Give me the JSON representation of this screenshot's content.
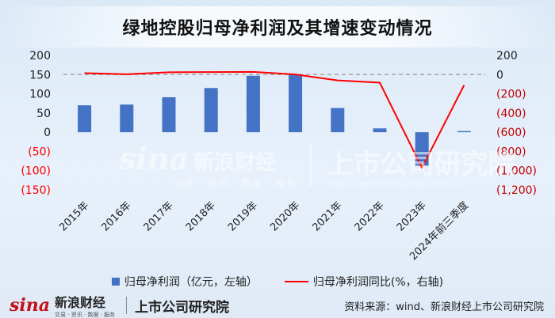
{
  "title": "绿地控股归母净利润及其增速变动情况",
  "chart_data": {
    "type": "bar",
    "categories": [
      "2015年",
      "2016年",
      "2017年",
      "2018年",
      "2019年",
      "2020年",
      "2021年",
      "2022年",
      "2023年",
      "2024年前三季度"
    ],
    "series": [
      {
        "name": "归母净利润（亿元，左轴）",
        "type": "bar",
        "axis": "left",
        "values": [
          70,
          72,
          91,
          115,
          147,
          150,
          63,
          10,
          -87,
          3
        ]
      },
      {
        "name": "归母净利润同比(%，右轴)",
        "type": "line",
        "axis": "right",
        "values": [
          15,
          3,
          24,
          26,
          28,
          1,
          -60,
          -84,
          -970,
          -109
        ]
      }
    ],
    "y_left": {
      "min": -150,
      "max": 200,
      "ticks": [
        200,
        150,
        100,
        50,
        0,
        -50,
        -100,
        -150
      ],
      "tick_labels": [
        "200",
        "150",
        "100",
        "50",
        "0",
        "(50)",
        "(100)",
        "(150)"
      ]
    },
    "y_right": {
      "min": -1200,
      "max": 200,
      "ticks": [
        200,
        0,
        -200,
        -400,
        -600,
        -800,
        -1000,
        -1200
      ],
      "tick_labels": [
        "200",
        "0",
        "(200)",
        "(400)",
        "(600)",
        "(800)",
        "(1,000)",
        "(1,200)"
      ]
    },
    "zero_line_style": "dashed",
    "grid": false,
    "legend_position": "bottom"
  },
  "legend": {
    "bar_label": "归母净利润（亿元，左轴）",
    "line_label": "归母净利润同比(%，右轴)"
  },
  "watermark": {
    "sina_mark": "sina",
    "sina_cn": "新浪财经",
    "sina_sub": "交易 · 资讯 · 数据 · 服务",
    "ss_cn": "上市公司研究院",
    "ss_sub": "PUBLIC COMPANY RESEARCH INSTITUTE"
  },
  "footer": {
    "sina_mark": "sina",
    "sina_cn": "新浪财经",
    "sina_sub": "交易 · 资讯 · 数据 · 服务",
    "ss_cn": "上市公司研究院",
    "source": "资料来源：wind、新浪财经上市公司研究院"
  },
  "colors": {
    "bar": "#4472c4",
    "line": "#ff0000",
    "left_negative_label": "#ff0000",
    "right_negative_label": "#c00000"
  }
}
